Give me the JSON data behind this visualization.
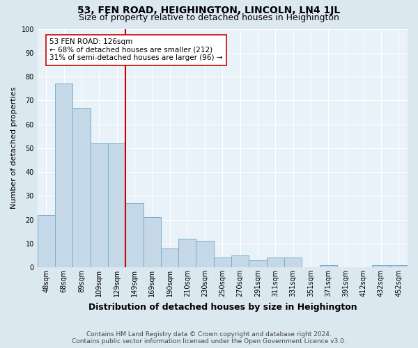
{
  "title": "53, FEN ROAD, HEIGHINGTON, LINCOLN, LN4 1JL",
  "subtitle": "Size of property relative to detached houses in Heighington",
  "xlabel": "Distribution of detached houses by size in Heighington",
  "ylabel": "Number of detached properties",
  "footnote1": "Contains HM Land Registry data © Crown copyright and database right 2024.",
  "footnote2": "Contains public sector information licensed under the Open Government Licence v3.0.",
  "categories": [
    "48sqm",
    "68sqm",
    "89sqm",
    "109sqm",
    "129sqm",
    "149sqm",
    "169sqm",
    "190sqm",
    "210sqm",
    "230sqm",
    "250sqm",
    "270sqm",
    "291sqm",
    "311sqm",
    "331sqm",
    "351sqm",
    "371sqm",
    "391sqm",
    "412sqm",
    "432sqm",
    "452sqm"
  ],
  "values": [
    22,
    77,
    67,
    52,
    52,
    27,
    21,
    8,
    12,
    11,
    4,
    5,
    3,
    4,
    4,
    0,
    1,
    0,
    0,
    1,
    1
  ],
  "bar_color": "#c5d8e8",
  "bar_edge_color": "#7aafc9",
  "vline_x_index": 4,
  "vline_color": "#cc0000",
  "annotation_text": "53 FEN ROAD: 126sqm\n← 68% of detached houses are smaller (212)\n31% of semi-detached houses are larger (96) →",
  "annotation_box_facecolor": "#ffffff",
  "annotation_box_edgecolor": "#cc0000",
  "ylim": [
    0,
    100
  ],
  "yticks": [
    0,
    10,
    20,
    30,
    40,
    50,
    60,
    70,
    80,
    90,
    100
  ],
  "fig_facecolor": "#dce8f0",
  "ax_facecolor": "#e8f2f8",
  "title_fontsize": 10,
  "subtitle_fontsize": 9,
  "xlabel_fontsize": 9,
  "ylabel_fontsize": 8,
  "tick_fontsize": 7,
  "annot_fontsize": 7.5,
  "footnote_fontsize": 6.5,
  "grid_color": "#ffffff"
}
